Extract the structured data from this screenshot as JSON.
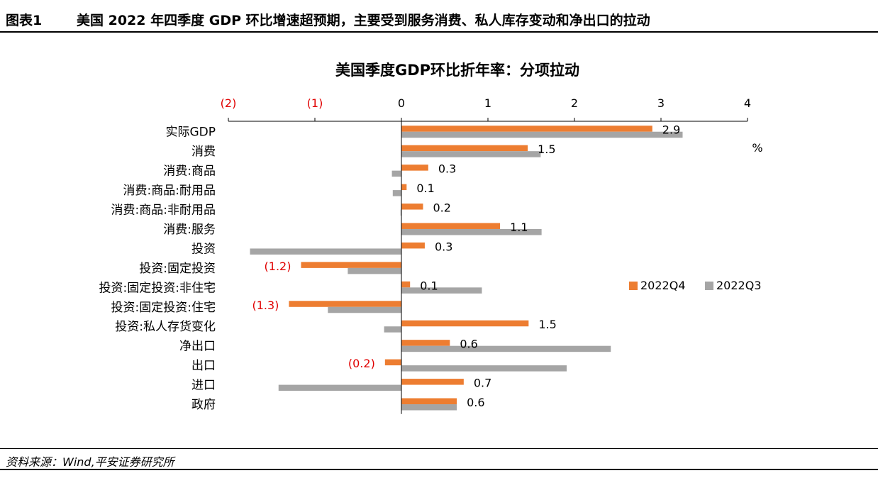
{
  "header": {
    "figure_number": "图表1",
    "figure_title": "美国 2022 年四季度 GDP 环比增速超预期，主要受到服务消费、私人库存变动和净出口的拉动"
  },
  "source": "资料来源：Wind,平安证券研究所",
  "colors": {
    "q4": "#ED7D31",
    "q3": "#A5A5A5",
    "negative_label": "#E00000",
    "axis": "#000000"
  },
  "chart_data": {
    "type": "bar",
    "orientation": "horizontal",
    "title": "美国季度GDP环比折年率：分项拉动",
    "unit": "%",
    "xlim": [
      -2,
      4
    ],
    "xticks": [
      -2,
      -1,
      0,
      1,
      2,
      3,
      4
    ],
    "xtick_labels": [
      "(2)",
      "(1)",
      "0",
      "1",
      "2",
      "3",
      "4"
    ],
    "xaxis_position": "top",
    "grid": false,
    "legend_position": "right-middle",
    "categories": [
      "实际GDP",
      "消费",
      "消费:商品",
      "消费:商品:耐用品",
      "消费:商品:非耐用品",
      "消费:服务",
      "投资",
      "投资:固定投资",
      "投资:固定投资:非住宅",
      "投资:固定投资:住宅",
      "投资:私人存货变化",
      "净出口",
      "出口",
      "进口",
      "政府"
    ],
    "series": [
      {
        "name": "2022Q4",
        "values": [
          2.9,
          1.46,
          0.31,
          0.06,
          0.25,
          1.14,
          0.27,
          -1.16,
          0.1,
          -1.3,
          1.47,
          0.56,
          -0.19,
          0.72,
          0.64
        ],
        "labels": [
          "2.9",
          "1.5",
          "0.3",
          "0.1",
          "0.2",
          "1.1",
          "0.3",
          "(1.2)",
          "0.1",
          "(1.3)",
          "1.5",
          "0.6",
          "(0.2)",
          "0.7",
          "0.6"
        ]
      },
      {
        "name": "2022Q3",
        "values": [
          3.25,
          1.61,
          -0.11,
          -0.1,
          -0.01,
          1.62,
          -1.75,
          -0.62,
          0.93,
          -0.85,
          -0.2,
          2.42,
          1.91,
          -1.42,
          0.64
        ]
      }
    ]
  }
}
